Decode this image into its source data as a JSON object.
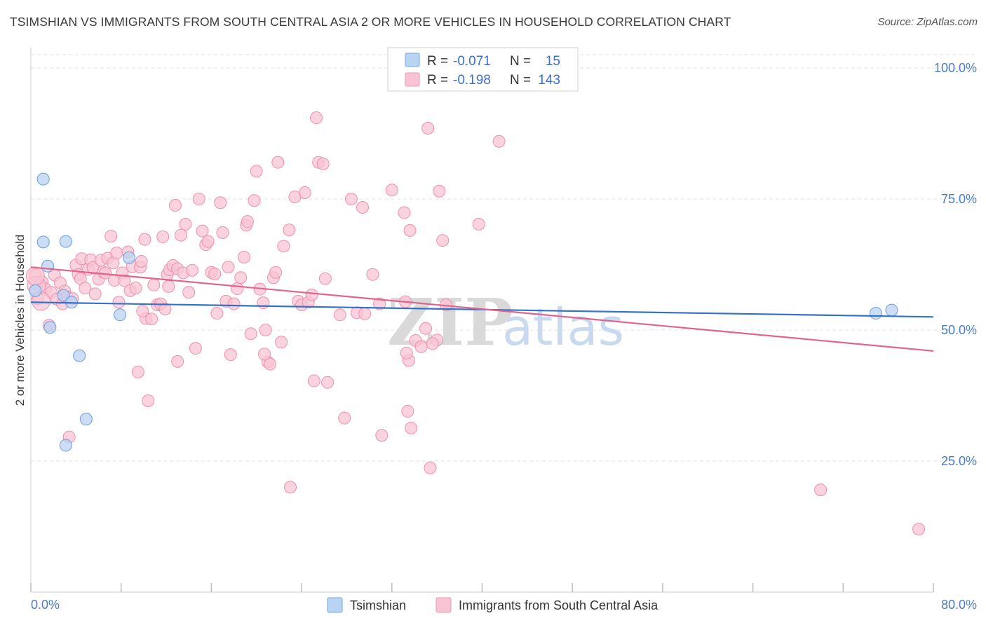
{
  "header": {
    "title": "TSIMSHIAN VS IMMIGRANTS FROM SOUTH CENTRAL ASIA 2 OR MORE VEHICLES IN HOUSEHOLD CORRELATION CHART",
    "source": "Source: ZipAtlas.com"
  },
  "watermark": {
    "part1": "ZIP",
    "part2": "atlas"
  },
  "legend": {
    "r_label": "R =",
    "n_label": "N =",
    "rows": [
      {
        "name": "Tsimshian",
        "r": "-0.071",
        "n": "15",
        "color": "#a8c8f0"
      },
      {
        "name": "Immigrants from South Central Asia",
        "r": "-0.198",
        "n": "143",
        "color": "#f5b8ca"
      }
    ]
  },
  "chart_data": {
    "type": "scatter",
    "xlabel": "",
    "ylabel": "2 or more Vehicles in Household",
    "xlim": [
      0,
      80
    ],
    "ylim": [
      0,
      105
    ],
    "x_tick_labels": [
      "0.0%",
      "80.0%"
    ],
    "y_ticks": [
      25,
      50,
      75,
      100
    ],
    "y_tick_labels": [
      "25.0%",
      "50.0%",
      "75.0%",
      "100.0%"
    ],
    "grid": true,
    "legend_position": "top-center",
    "series": [
      {
        "name": "Tsimshian",
        "color": "#6a9be0",
        "fill": "#b9d3f3",
        "trend": {
          "x0": 0,
          "y0": 55.3,
          "x1": 80,
          "y1": 52.5,
          "color": "#3570c9"
        },
        "points": [
          [
            0.4,
            57.5
          ],
          [
            1.1,
            66.8
          ],
          [
            1.1,
            78.8
          ],
          [
            1.5,
            62.2
          ],
          [
            1.7,
            50.5
          ],
          [
            2.9,
            56.6
          ],
          [
            3.1,
            66.9
          ],
          [
            3.1,
            28.0
          ],
          [
            3.6,
            55.3
          ],
          [
            4.9,
            33.0
          ],
          [
            7.9,
            52.9
          ],
          [
            8.7,
            63.8
          ],
          [
            4.3,
            45.1
          ],
          [
            74.9,
            53.2
          ],
          [
            76.3,
            53.8
          ]
        ]
      },
      {
        "name": "Immigrants from South Central Asia",
        "color": "#ee8fac",
        "fill": "#f8c4d3",
        "trend": {
          "x0": 0,
          "y0": 62.0,
          "x1": 80,
          "y1": 46.0,
          "color": "#e0648e"
        },
        "points": [
          [
            0.4,
            60.5
          ],
          [
            0.6,
            56.0
          ],
          [
            0.8,
            58.5
          ],
          [
            1.0,
            59.2
          ],
          [
            1.3,
            57.8
          ],
          [
            1.6,
            50.9
          ],
          [
            1.8,
            57.2
          ],
          [
            2.1,
            60.5
          ],
          [
            2.3,
            55.9
          ],
          [
            2.6,
            59.0
          ],
          [
            2.8,
            55.0
          ],
          [
            3.0,
            57.4
          ],
          [
            3.2,
            56.3
          ],
          [
            3.4,
            29.6
          ],
          [
            3.7,
            56.0
          ],
          [
            4.0,
            62.4
          ],
          [
            4.2,
            60.6
          ],
          [
            4.4,
            59.8
          ],
          [
            4.5,
            63.6
          ],
          [
            4.8,
            58.0
          ],
          [
            5.1,
            61.6
          ],
          [
            5.3,
            63.4
          ],
          [
            5.5,
            61.9
          ],
          [
            5.7,
            56.9
          ],
          [
            6.0,
            59.7
          ],
          [
            6.2,
            63.3
          ],
          [
            6.4,
            61.1
          ],
          [
            6.6,
            60.9
          ],
          [
            6.8,
            63.7
          ],
          [
            7.1,
            67.9
          ],
          [
            7.3,
            62.8
          ],
          [
            7.4,
            59.5
          ],
          [
            7.6,
            64.7
          ],
          [
            7.8,
            55.3
          ],
          [
            8.1,
            60.9
          ],
          [
            8.3,
            59.4
          ],
          [
            8.6,
            64.9
          ],
          [
            8.8,
            57.5
          ],
          [
            9.0,
            62.1
          ],
          [
            9.3,
            58.0
          ],
          [
            9.5,
            42.0
          ],
          [
            9.7,
            62.0
          ],
          [
            9.8,
            63.1
          ],
          [
            10.1,
            67.3
          ],
          [
            10.2,
            52.2
          ],
          [
            10.4,
            36.5
          ],
          [
            10.7,
            52.1
          ],
          [
            10.9,
            58.6
          ],
          [
            11.2,
            54.8
          ],
          [
            11.5,
            55.0
          ],
          [
            11.7,
            67.8
          ],
          [
            11.9,
            54.0
          ],
          [
            12.1,
            60.6
          ],
          [
            12.3,
            61.5
          ],
          [
            12.6,
            62.3
          ],
          [
            12.8,
            73.8
          ],
          [
            13.0,
            61.7
          ],
          [
            13.3,
            68.1
          ],
          [
            13.5,
            60.9
          ],
          [
            13.7,
            70.2
          ],
          [
            14.0,
            57.2
          ],
          [
            14.3,
            61.4
          ],
          [
            14.6,
            46.5
          ],
          [
            14.9,
            75.0
          ],
          [
            15.2,
            68.9
          ],
          [
            15.5,
            66.3
          ],
          [
            15.7,
            66.9
          ],
          [
            16.0,
            61.0
          ],
          [
            16.3,
            60.7
          ],
          [
            16.5,
            53.2
          ],
          [
            16.8,
            74.3
          ],
          [
            17.0,
            68.6
          ],
          [
            17.3,
            55.5
          ],
          [
            17.5,
            62.0
          ],
          [
            17.7,
            45.3
          ],
          [
            18.0,
            55.0
          ],
          [
            18.3,
            57.9
          ],
          [
            18.6,
            60.0
          ],
          [
            18.9,
            63.9
          ],
          [
            19.1,
            70.0
          ],
          [
            19.2,
            70.7
          ],
          [
            19.5,
            49.3
          ],
          [
            19.8,
            74.7
          ],
          [
            20.0,
            80.3
          ],
          [
            20.3,
            57.8
          ],
          [
            20.6,
            55.2
          ],
          [
            20.8,
            50.0
          ],
          [
            21.0,
            43.9
          ],
          [
            21.2,
            43.5
          ],
          [
            21.5,
            60.0
          ],
          [
            21.7,
            61.0
          ],
          [
            21.9,
            82.0
          ],
          [
            22.2,
            47.7
          ],
          [
            22.4,
            66.0
          ],
          [
            22.9,
            69.1
          ],
          [
            23.4,
            75.4
          ],
          [
            23.7,
            55.5
          ],
          [
            24.0,
            54.8
          ],
          [
            24.3,
            76.2
          ],
          [
            24.6,
            55.3
          ],
          [
            24.9,
            56.7
          ],
          [
            25.1,
            40.3
          ],
          [
            25.3,
            90.5
          ],
          [
            25.5,
            82.0
          ],
          [
            25.9,
            81.7
          ],
          [
            26.1,
            59.8
          ],
          [
            26.3,
            40.0
          ],
          [
            27.4,
            52.9
          ],
          [
            27.8,
            33.2
          ],
          [
            28.4,
            75.0
          ],
          [
            28.9,
            53.3
          ],
          [
            29.4,
            73.4
          ],
          [
            29.6,
            53.1
          ],
          [
            30.3,
            60.6
          ],
          [
            30.9,
            55.0
          ],
          [
            31.1,
            29.9
          ],
          [
            32.0,
            76.7
          ],
          [
            33.1,
            72.4
          ],
          [
            33.4,
            34.5
          ],
          [
            33.5,
            44.2
          ],
          [
            33.6,
            69.0
          ],
          [
            33.7,
            31.3
          ],
          [
            34.1,
            48.0
          ],
          [
            34.6,
            46.8
          ],
          [
            35.0,
            50.3
          ],
          [
            35.2,
            88.5
          ],
          [
            35.4,
            23.7
          ],
          [
            36.0,
            48.1
          ],
          [
            36.2,
            76.5
          ],
          [
            36.5,
            67.1
          ],
          [
            36.8,
            54.8
          ],
          [
            39.7,
            70.2
          ],
          [
            41.5,
            86.0
          ],
          [
            33.2,
            55.4
          ],
          [
            23.0,
            20.0
          ],
          [
            70.0,
            19.5
          ],
          [
            78.7,
            12.0
          ],
          [
            33.3,
            45.6
          ],
          [
            35.6,
            47.4
          ],
          [
            20.7,
            45.4
          ],
          [
            12.2,
            58.3
          ],
          [
            9.9,
            53.6
          ],
          [
            13.0,
            44.0
          ]
        ]
      }
    ]
  },
  "bottom_legend": {
    "items": [
      {
        "label": "Tsimshian"
      },
      {
        "label": "Immigrants from South Central Asia"
      }
    ]
  }
}
